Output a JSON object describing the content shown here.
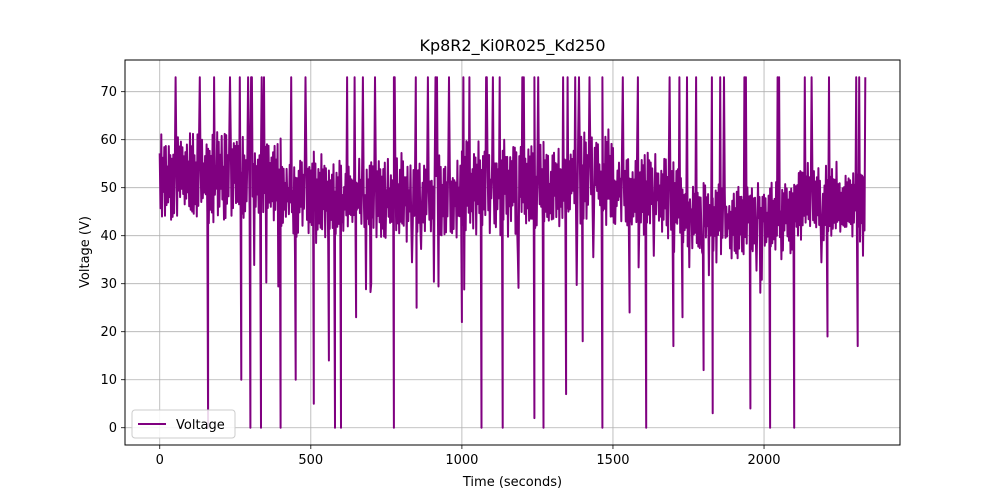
{
  "chart_data": {
    "type": "line",
    "title": "Kp8R2_Ki0R025_Kd250",
    "xlabel": "Time (seconds)",
    "ylabel": "Voltage (V)",
    "xlim": [
      -115,
      2450
    ],
    "ylim": [
      -3.6,
      76.6
    ],
    "xticks": [
      0,
      500,
      1000,
      1500,
      2000
    ],
    "yticks": [
      0,
      10,
      20,
      30,
      40,
      50,
      60,
      70
    ],
    "grid": true,
    "legend_position": "lower-left",
    "series": [
      {
        "name": "Voltage",
        "color": "#800080",
        "x_start": 0,
        "x_end": 2335,
        "clip_min": 0,
        "clip_max": 73,
        "generator": "pseudo-random oscillation; values estimated from image",
        "spikes_x": [
          160,
          270,
          300,
          335,
          400,
          450,
          510,
          560,
          580,
          600,
          650,
          700,
          775,
          850,
          1000,
          1065,
          1135,
          1240,
          1270,
          1345,
          1400,
          1465,
          1555,
          1610,
          1700,
          1730,
          1800,
          1830,
          1955,
          2020,
          2100,
          2210,
          2310
        ],
        "spikes_y": [
          0,
          10,
          0,
          0,
          0,
          10,
          5,
          14,
          0,
          0,
          23,
          30,
          0,
          25,
          22,
          0,
          0,
          2,
          0,
          7,
          18,
          0,
          24,
          0,
          17,
          23,
          12,
          3,
          4,
          0,
          0,
          19,
          17
        ],
        "bands": [
          {
            "x": [
              0,
              400
            ],
            "mean": 52,
            "amp": 9
          },
          {
            "x": [
              400,
              1000
            ],
            "mean": 48,
            "amp": 8
          },
          {
            "x": [
              1000,
              1350
            ],
            "mean": 50,
            "amp": 9
          },
          {
            "x": [
              1350,
              1500
            ],
            "mean": 52,
            "amp": 9
          },
          {
            "x": [
              1500,
              1720
            ],
            "mean": 49,
            "amp": 8
          },
          {
            "x": [
              1720,
              2100
            ],
            "mean": 44,
            "amp": 7
          },
          {
            "x": [
              2100,
              2335
            ],
            "mean": 47,
            "amp": 7
          }
        ]
      }
    ]
  }
}
